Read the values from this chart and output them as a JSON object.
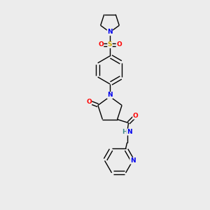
{
  "background_color": "#ececec",
  "bond_color": "#000000",
  "atom_colors": {
    "N": "#0000ee",
    "O": "#ff0000",
    "S": "#ccaa00",
    "H": "#448888",
    "C": "#000000"
  },
  "figsize": [
    3.0,
    3.0
  ],
  "dpi": 100
}
